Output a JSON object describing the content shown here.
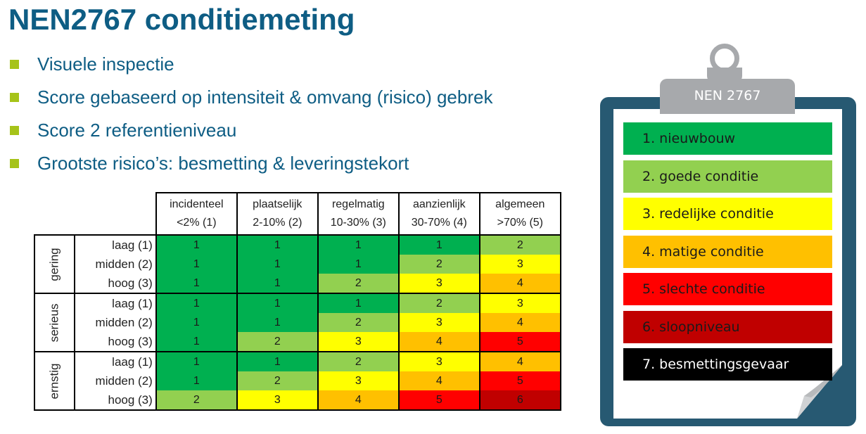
{
  "title": "NEN2767 conditiemeting",
  "bullets": [
    "Visuele inspectie",
    "Score gebaseerd op intensiteit & omvang (risico) gebrek",
    "Score 2 referentieniveau",
    "Grootste risico’s: besmetting & leveringstekort"
  ],
  "matrix": {
    "columns": [
      {
        "line1": "incidenteel",
        "line2": "<2% (1)"
      },
      {
        "line1": "plaatselijk",
        "line2": "2-10% (2)"
      },
      {
        "line1": "regelmatig",
        "line2": "10-30% (3)"
      },
      {
        "line1": "aanzienlijk",
        "line2": "30-70% (4)"
      },
      {
        "line1": "algemeen",
        "line2": ">70% (5)"
      }
    ],
    "groups": [
      {
        "name": "gering",
        "rows": [
          {
            "level": "laag (1)",
            "values": [
              "1",
              "1",
              "1",
              "1",
              "2"
            ]
          },
          {
            "level": "midden (2)",
            "values": [
              "1",
              "1",
              "1",
              "2",
              "3"
            ]
          },
          {
            "level": "hoog (3)",
            "values": [
              "1",
              "1",
              "2",
              "3",
              "4"
            ]
          }
        ]
      },
      {
        "name": "serieus",
        "rows": [
          {
            "level": "laag (1)",
            "values": [
              "1",
              "1",
              "1",
              "2",
              "3"
            ]
          },
          {
            "level": "midden (2)",
            "values": [
              "1",
              "1",
              "2",
              "3",
              "4"
            ]
          },
          {
            "level": "hoog (3)",
            "values": [
              "1",
              "2",
              "3",
              "4",
              "5"
            ]
          }
        ]
      },
      {
        "name": "ernstig",
        "rows": [
          {
            "level": "laag (1)",
            "values": [
              "1",
              "1",
              "2",
              "3",
              "4"
            ]
          },
          {
            "level": "midden (2)",
            "values": [
              "1",
              "2",
              "3",
              "4",
              "5"
            ]
          },
          {
            "level": "hoog (3)",
            "values": [
              "2",
              "3",
              "4",
              "5",
              "6"
            ]
          }
        ]
      }
    ],
    "score_colors": {
      "1": "#00b050",
      "2": "#92d050",
      "3": "#ffff00",
      "4": "#ffc000",
      "5": "#ff0000",
      "6": "#c00000"
    }
  },
  "clipboard": {
    "label": "NEN 2767",
    "items": [
      {
        "text": "1. nieuwbouw",
        "color": "#00b050"
      },
      {
        "text": "2. goede conditie",
        "color": "#92d050"
      },
      {
        "text": "3. redelijke conditie",
        "color": "#ffff00"
      },
      {
        "text": "4. matige conditie",
        "color": "#ffc000"
      },
      {
        "text": "5. slechte conditie",
        "color": "#ff0000"
      },
      {
        "text": "6. sloopniveau",
        "color": "#c00000"
      },
      {
        "text": "7. besmettingsgevaar",
        "color": "#000000"
      }
    ]
  }
}
